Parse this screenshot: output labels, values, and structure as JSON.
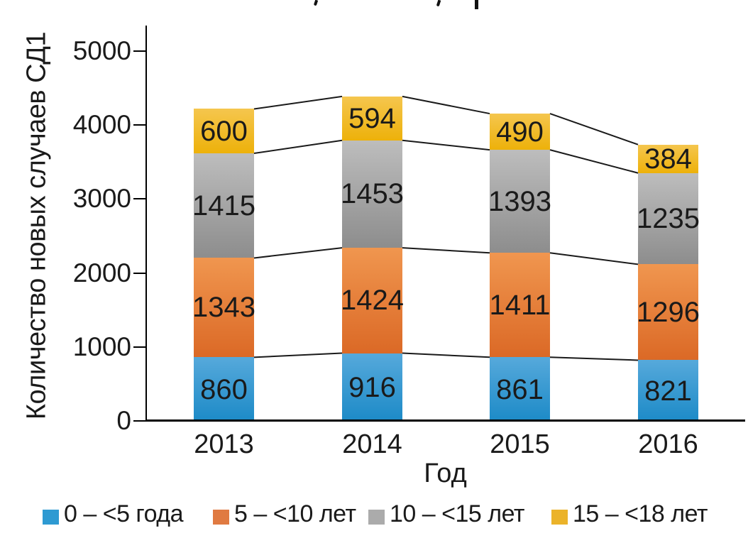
{
  "chart_data": {
    "type": "bar",
    "stacked": true,
    "categories": [
      "2013",
      "2014",
      "2015",
      "2016"
    ],
    "series": [
      {
        "name": "0 – <5 года",
        "values": [
          860,
          916,
          861,
          821
        ],
        "color_top": "#56A9DB",
        "color_bottom": "#1C8AC7",
        "legend_color": "#2E9AD2"
      },
      {
        "name": "5 – <10 лет",
        "values": [
          1343,
          1424,
          1411,
          1296
        ],
        "color_top": "#F0964F",
        "color_bottom": "#DB6926",
        "legend_color": "#E07A41"
      },
      {
        "name": "10 – <15 лет",
        "values": [
          1415,
          1453,
          1393,
          1235
        ],
        "color_top": "#BDBDBD",
        "color_bottom": "#8D8D8D",
        "legend_color": "#ABABAB"
      },
      {
        "name": "15 – <18 лет",
        "values": [
          600,
          594,
          490,
          384
        ],
        "color_top": "#F5C64E",
        "color_bottom": "#EDB10A",
        "legend_color": "#EBB32A"
      }
    ],
    "xlabel": "Год",
    "ylabel": "Количество новых случаев СД1",
    "ylim": [
      0,
      5000
    ],
    "yticks": [
      0,
      1000,
      2000,
      3000,
      4000,
      5000
    ],
    "grid": false,
    "legend_position": "bottom",
    "connector_lines": true,
    "text_color": "#1a1a1a",
    "axis_color": "#000000",
    "connector_color": "#1a1a1a"
  }
}
